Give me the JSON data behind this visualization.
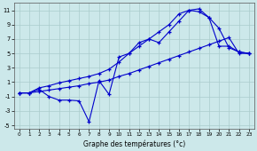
{
  "xlabel": "Graphe des températures (°c)",
  "bg_color": "#cce8ea",
  "grid_color": "#aacccc",
  "line_color": "#0000cc",
  "line1_x": [
    0,
    1,
    2,
    3,
    4,
    5,
    6,
    7,
    8,
    9,
    10,
    11,
    12,
    13,
    14,
    15,
    16,
    17,
    18,
    19,
    20,
    21,
    22,
    23
  ],
  "line1_y": [
    -0.5,
    -0.5,
    0.0,
    -1.0,
    -1.5,
    -1.5,
    -1.6,
    -4.5,
    1.2,
    -0.7,
    4.5,
    5.0,
    6.5,
    7.0,
    6.5,
    8.0,
    9.5,
    11.0,
    11.2,
    10.0,
    8.5,
    5.8,
    5.2,
    5.0
  ],
  "line2_x": [
    0,
    1,
    2,
    3,
    4,
    5,
    6,
    7,
    8,
    9,
    10,
    11,
    12,
    13,
    14,
    15,
    16,
    17,
    18,
    19,
    20,
    21,
    22,
    23
  ],
  "line2_y": [
    -0.5,
    -0.5,
    0.2,
    0.5,
    0.9,
    1.2,
    1.5,
    1.8,
    2.2,
    2.8,
    3.8,
    5.0,
    6.0,
    7.0,
    8.0,
    9.0,
    10.5,
    11.0,
    10.8,
    10.0,
    6.0,
    6.0,
    5.2,
    5.0
  ],
  "line3_x": [
    0,
    1,
    2,
    3,
    4,
    5,
    6,
    7,
    8,
    9,
    10,
    11,
    12,
    13,
    14,
    15,
    16,
    17,
    18,
    19,
    20,
    21,
    22,
    23
  ],
  "line3_y": [
    -0.5,
    -0.5,
    -0.3,
    -0.1,
    0.1,
    0.3,
    0.5,
    0.8,
    1.0,
    1.3,
    1.8,
    2.2,
    2.7,
    3.2,
    3.7,
    4.2,
    4.7,
    5.2,
    5.7,
    6.2,
    6.7,
    7.2,
    5.0,
    5.0
  ],
  "xlim": [
    -0.5,
    23.5
  ],
  "ylim": [
    -5.5,
    12
  ],
  "yticks": [
    -5,
    -3,
    -1,
    1,
    3,
    5,
    7,
    9,
    11
  ],
  "xticks": [
    0,
    1,
    2,
    3,
    4,
    5,
    6,
    7,
    8,
    9,
    10,
    11,
    12,
    13,
    14,
    15,
    16,
    17,
    18,
    19,
    20,
    21,
    22,
    23
  ]
}
